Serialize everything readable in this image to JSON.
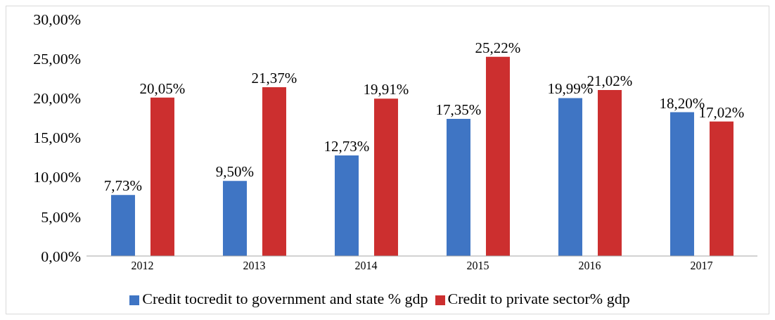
{
  "chart_data": {
    "type": "bar",
    "categories": [
      "2012",
      "2013",
      "2014",
      "2015",
      "2016",
      "2017"
    ],
    "series": [
      {
        "name": "Credit tocredit to government and state % gdp",
        "color": "#3f75c4",
        "values": [
          7.73,
          9.5,
          12.73,
          17.35,
          19.99,
          18.2
        ],
        "value_labels": [
          "7,73%",
          "9,50%",
          "12,73%",
          "17,35%",
          "19,99%",
          "18,20%"
        ]
      },
      {
        "name": "Credit to private sector% gdp",
        "color": "#cc2f2f",
        "values": [
          20.05,
          21.37,
          19.91,
          25.22,
          21.02,
          17.02
        ],
        "value_labels": [
          "20,05%",
          "21,37%",
          "19,91%",
          "25,22%",
          "21,02%",
          "17,02%"
        ]
      }
    ],
    "ylim": [
      0,
      30
    ],
    "yticks": [
      {
        "value": 0,
        "label": "0,00%"
      },
      {
        "value": 5,
        "label": "5,00%"
      },
      {
        "value": 10,
        "label": "10,00%"
      },
      {
        "value": 15,
        "label": "15,00%"
      },
      {
        "value": 20,
        "label": "20,00%"
      },
      {
        "value": 25,
        "label": "25,00%"
      },
      {
        "value": 30,
        "label": "30,00%"
      }
    ],
    "grid": false,
    "legend": "bottom"
  }
}
